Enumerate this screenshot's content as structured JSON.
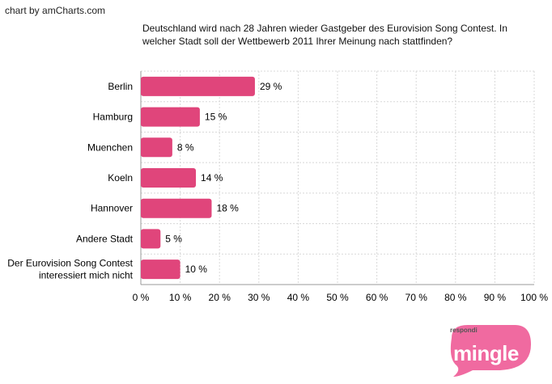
{
  "credit": "chart by amCharts.com",
  "title_lines": [
    "Deutschland wird nach 28 Jahren wieder Gastgeber des Eurovision Song Contest. In",
    "welcher Stadt soll der Wettbewerb 2011 Ihrer Meinung nach stattfinden?"
  ],
  "chart_data": {
    "type": "bar",
    "orientation": "horizontal",
    "categories": [
      [
        "Berlin"
      ],
      [
        "Hamburg"
      ],
      [
        "Muenchen"
      ],
      [
        "Koeln"
      ],
      [
        "Hannover"
      ],
      [
        "Andere Stadt"
      ],
      [
        "Der Eurovision Song Contest",
        "interessiert mich nicht"
      ]
    ],
    "values": [
      29,
      15,
      8,
      14,
      18,
      5,
      10
    ],
    "value_labels": [
      "29 %",
      "15 %",
      "8 %",
      "14 %",
      "18 %",
      "5 %",
      "10 %"
    ],
    "xlim": [
      0,
      100
    ],
    "x_ticks": [
      "0 %",
      "10 %",
      "20 %",
      "30 %",
      "40 %",
      "50 %",
      "60 %",
      "70 %",
      "80 %",
      "90 %",
      "100 %"
    ],
    "grid": true,
    "bar_color": "#e0457b"
  },
  "logo": {
    "prefix": "respondi",
    "word": "mingle",
    "color": "#f06aa0"
  }
}
